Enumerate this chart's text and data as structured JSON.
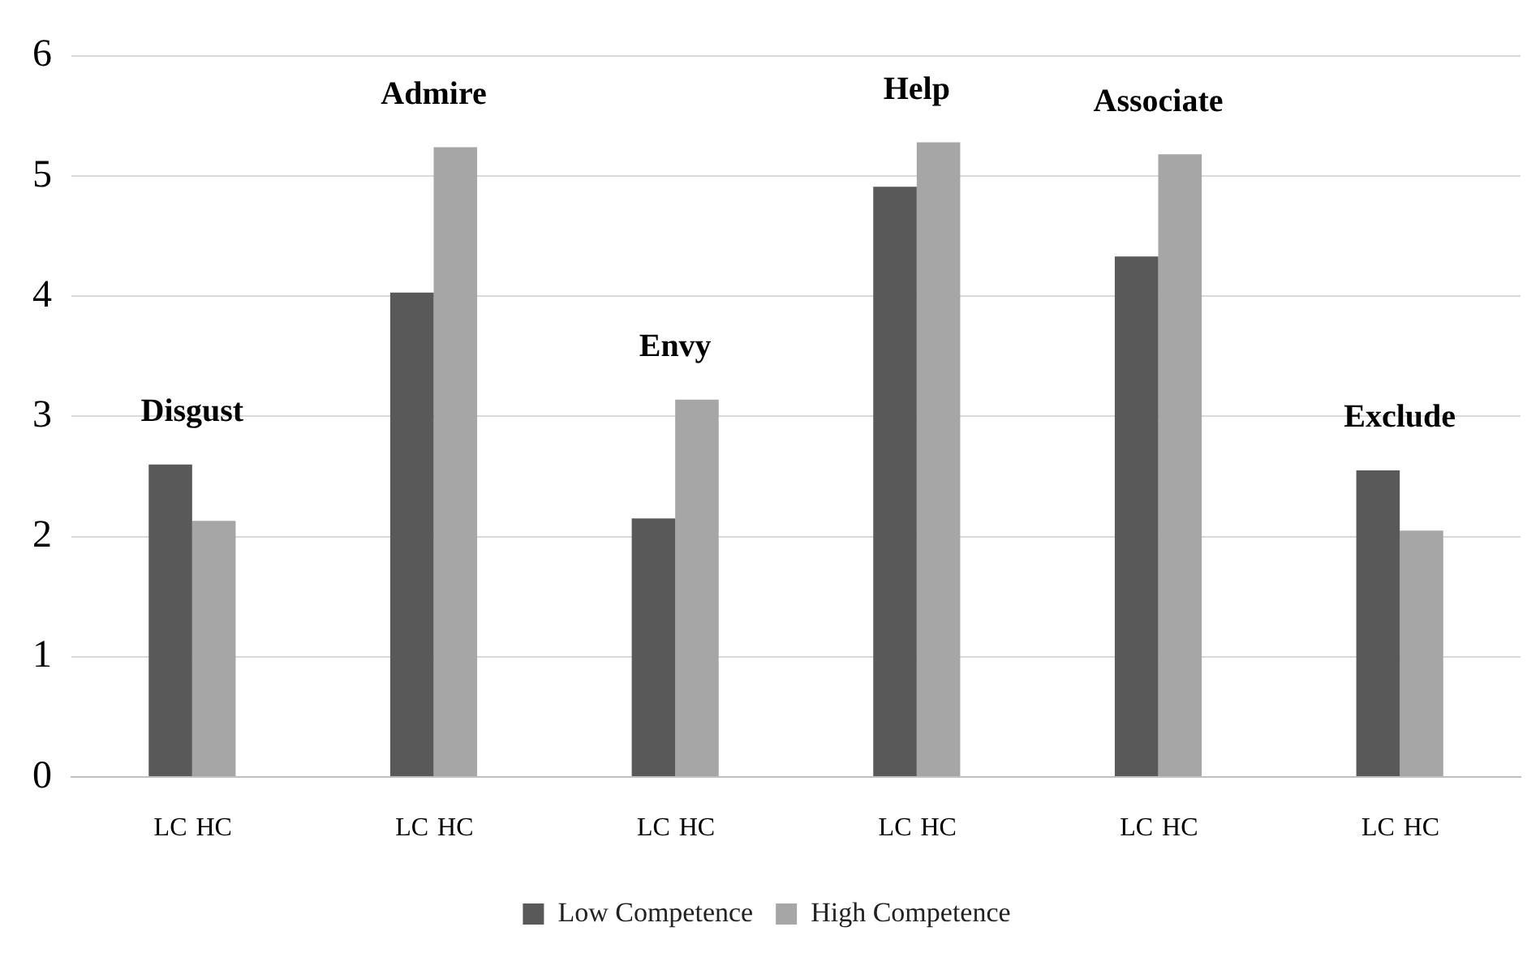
{
  "chart_data": {
    "type": "bar",
    "categories": [
      "Disgust",
      "Admire",
      "Envy",
      "Help",
      "Associate",
      "Exclude"
    ],
    "series": [
      {
        "name": "Low Competence",
        "color": "#595959",
        "values": [
          2.6,
          4.03,
          2.15,
          4.91,
          4.33,
          2.55
        ]
      },
      {
        "name": "High Competence",
        "color": "#a6a6a6",
        "values": [
          2.13,
          5.24,
          3.14,
          5.28,
          5.18,
          2.05
        ]
      }
    ],
    "annotations": [
      "LC",
      "HC"
    ],
    "ylim": [
      0,
      6
    ],
    "yticks": [
      0,
      1,
      2,
      3,
      4,
      5,
      6
    ],
    "grid": "y",
    "legend": "bottom"
  }
}
